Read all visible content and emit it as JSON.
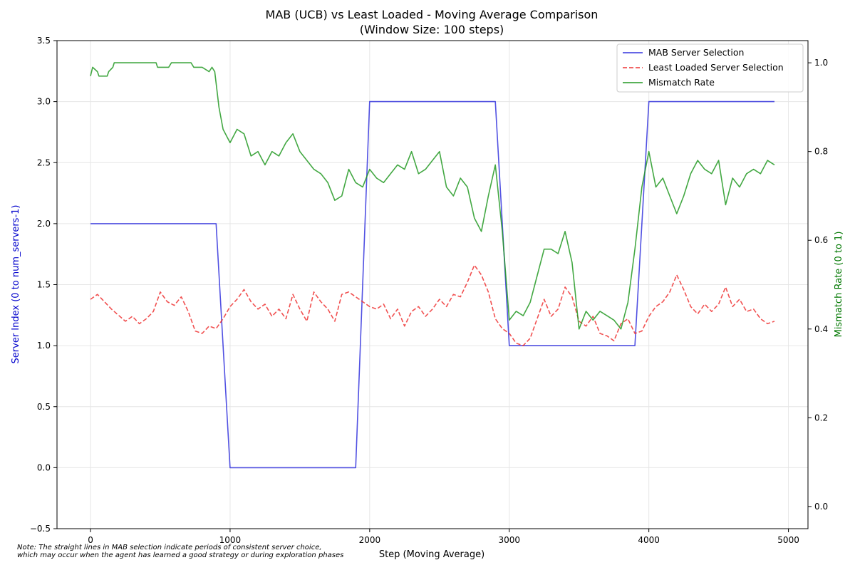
{
  "chart_data": {
    "type": "line",
    "title": "MAB (UCB) vs Least Loaded - Moving Average Comparison",
    "subtitle": "(Window Size: 100 steps)",
    "xlabel": "Step (Moving Average)",
    "ylabel": "Server Index (0 to num_servers-1)",
    "y2label": "Mismatch Rate (0 to 1)",
    "xlim": [
      -240,
      5140
    ],
    "ylim": [
      -0.5,
      3.5
    ],
    "y2lim": [
      -0.05,
      1.05
    ],
    "xticks": [
      0,
      1000,
      2000,
      3000,
      4000,
      5000
    ],
    "yticks": [
      -0.5,
      0.0,
      0.5,
      1.0,
      1.5,
      2.0,
      2.5,
      3.0,
      3.5
    ],
    "y2ticks": [
      0.0,
      0.2,
      0.4,
      0.6,
      0.8,
      1.0
    ],
    "grid": true,
    "legend_position": "top-right",
    "series": [
      {
        "name": "MAB Server Selection",
        "axis": "left",
        "color": "#3333dd",
        "style": "solid",
        "points": [
          [
            0,
            2.0
          ],
          [
            900,
            2.0
          ],
          [
            1000,
            0.0
          ],
          [
            1900,
            0.0
          ],
          [
            2000,
            3.0
          ],
          [
            2900,
            3.0
          ],
          [
            3000,
            1.0
          ],
          [
            3900,
            1.0
          ],
          [
            4000,
            3.0
          ],
          [
            4900,
            3.0
          ]
        ]
      },
      {
        "name": "Least Loaded Server Selection",
        "axis": "left",
        "color": "#ee3333",
        "style": "dashed",
        "points": [
          [
            0,
            1.38
          ],
          [
            50,
            1.42
          ],
          [
            100,
            1.36
          ],
          [
            150,
            1.3
          ],
          [
            200,
            1.25
          ],
          [
            250,
            1.2
          ],
          [
            300,
            1.24
          ],
          [
            350,
            1.18
          ],
          [
            400,
            1.22
          ],
          [
            450,
            1.28
          ],
          [
            500,
            1.44
          ],
          [
            550,
            1.36
          ],
          [
            600,
            1.33
          ],
          [
            650,
            1.4
          ],
          [
            700,
            1.28
          ],
          [
            750,
            1.12
          ],
          [
            800,
            1.1
          ],
          [
            850,
            1.16
          ],
          [
            900,
            1.14
          ],
          [
            950,
            1.22
          ],
          [
            1000,
            1.32
          ],
          [
            1050,
            1.38
          ],
          [
            1100,
            1.46
          ],
          [
            1150,
            1.36
          ],
          [
            1200,
            1.3
          ],
          [
            1250,
            1.34
          ],
          [
            1300,
            1.24
          ],
          [
            1350,
            1.3
          ],
          [
            1400,
            1.22
          ],
          [
            1450,
            1.42
          ],
          [
            1500,
            1.3
          ],
          [
            1550,
            1.2
          ],
          [
            1600,
            1.44
          ],
          [
            1650,
            1.36
          ],
          [
            1700,
            1.3
          ],
          [
            1750,
            1.2
          ],
          [
            1800,
            1.42
          ],
          [
            1850,
            1.44
          ],
          [
            1900,
            1.4
          ],
          [
            1950,
            1.36
          ],
          [
            2000,
            1.32
          ],
          [
            2050,
            1.3
          ],
          [
            2100,
            1.34
          ],
          [
            2150,
            1.22
          ],
          [
            2200,
            1.3
          ],
          [
            2250,
            1.16
          ],
          [
            2300,
            1.28
          ],
          [
            2350,
            1.32
          ],
          [
            2400,
            1.24
          ],
          [
            2450,
            1.3
          ],
          [
            2500,
            1.38
          ],
          [
            2550,
            1.32
          ],
          [
            2600,
            1.42
          ],
          [
            2650,
            1.4
          ],
          [
            2700,
            1.52
          ],
          [
            2750,
            1.66
          ],
          [
            2800,
            1.58
          ],
          [
            2850,
            1.44
          ],
          [
            2900,
            1.22
          ],
          [
            2950,
            1.14
          ],
          [
            3000,
            1.1
          ],
          [
            3050,
            1.02
          ],
          [
            3100,
            1.0
          ],
          [
            3150,
            1.06
          ],
          [
            3200,
            1.22
          ],
          [
            3250,
            1.38
          ],
          [
            3300,
            1.24
          ],
          [
            3350,
            1.3
          ],
          [
            3400,
            1.48
          ],
          [
            3450,
            1.4
          ],
          [
            3500,
            1.2
          ],
          [
            3550,
            1.16
          ],
          [
            3600,
            1.24
          ],
          [
            3650,
            1.1
          ],
          [
            3700,
            1.08
          ],
          [
            3750,
            1.04
          ],
          [
            3800,
            1.18
          ],
          [
            3850,
            1.22
          ],
          [
            3900,
            1.1
          ],
          [
            3950,
            1.12
          ],
          [
            4000,
            1.24
          ],
          [
            4050,
            1.32
          ],
          [
            4100,
            1.36
          ],
          [
            4150,
            1.44
          ],
          [
            4200,
            1.58
          ],
          [
            4250,
            1.46
          ],
          [
            4300,
            1.32
          ],
          [
            4350,
            1.26
          ],
          [
            4400,
            1.34
          ],
          [
            4450,
            1.28
          ],
          [
            4500,
            1.34
          ],
          [
            4550,
            1.48
          ],
          [
            4600,
            1.32
          ],
          [
            4650,
            1.38
          ],
          [
            4700,
            1.28
          ],
          [
            4750,
            1.3
          ],
          [
            4800,
            1.22
          ],
          [
            4850,
            1.18
          ],
          [
            4900,
            1.2
          ]
        ]
      },
      {
        "name": "Mismatch Rate",
        "axis": "right",
        "color": "#229922",
        "style": "solid",
        "points": [
          [
            0,
            0.97
          ],
          [
            15,
            0.99
          ],
          [
            50,
            0.98
          ],
          [
            60,
            0.97
          ],
          [
            120,
            0.97
          ],
          [
            130,
            0.98
          ],
          [
            160,
            0.99
          ],
          [
            170,
            1.0
          ],
          [
            300,
            1.0
          ],
          [
            470,
            1.0
          ],
          [
            480,
            0.99
          ],
          [
            560,
            0.99
          ],
          [
            580,
            1.0
          ],
          [
            720,
            1.0
          ],
          [
            740,
            0.99
          ],
          [
            800,
            0.99
          ],
          [
            850,
            0.98
          ],
          [
            870,
            0.99
          ],
          [
            890,
            0.98
          ],
          [
            920,
            0.9
          ],
          [
            950,
            0.85
          ],
          [
            1000,
            0.82
          ],
          [
            1050,
            0.85
          ],
          [
            1100,
            0.84
          ],
          [
            1150,
            0.79
          ],
          [
            1200,
            0.8
          ],
          [
            1250,
            0.77
          ],
          [
            1300,
            0.8
          ],
          [
            1350,
            0.79
          ],
          [
            1400,
            0.82
          ],
          [
            1450,
            0.84
          ],
          [
            1500,
            0.8
          ],
          [
            1550,
            0.78
          ],
          [
            1600,
            0.76
          ],
          [
            1650,
            0.75
          ],
          [
            1700,
            0.73
          ],
          [
            1750,
            0.69
          ],
          [
            1800,
            0.7
          ],
          [
            1850,
            0.76
          ],
          [
            1900,
            0.73
          ],
          [
            1950,
            0.72
          ],
          [
            2000,
            0.76
          ],
          [
            2050,
            0.74
          ],
          [
            2100,
            0.73
          ],
          [
            2150,
            0.75
          ],
          [
            2200,
            0.77
          ],
          [
            2250,
            0.76
          ],
          [
            2300,
            0.8
          ],
          [
            2350,
            0.75
          ],
          [
            2400,
            0.76
          ],
          [
            2450,
            0.78
          ],
          [
            2500,
            0.8
          ],
          [
            2550,
            0.72
          ],
          [
            2600,
            0.7
          ],
          [
            2650,
            0.74
          ],
          [
            2700,
            0.72
          ],
          [
            2750,
            0.65
          ],
          [
            2800,
            0.62
          ],
          [
            2850,
            0.7
          ],
          [
            2900,
            0.77
          ],
          [
            2950,
            0.62
          ],
          [
            3000,
            0.42
          ],
          [
            3050,
            0.44
          ],
          [
            3100,
            0.43
          ],
          [
            3150,
            0.46
          ],
          [
            3200,
            0.52
          ],
          [
            3250,
            0.58
          ],
          [
            3300,
            0.58
          ],
          [
            3350,
            0.57
          ],
          [
            3400,
            0.62
          ],
          [
            3450,
            0.55
          ],
          [
            3500,
            0.4
          ],
          [
            3550,
            0.44
          ],
          [
            3600,
            0.42
          ],
          [
            3650,
            0.44
          ],
          [
            3700,
            0.43
          ],
          [
            3750,
            0.42
          ],
          [
            3800,
            0.4
          ],
          [
            3850,
            0.46
          ],
          [
            3900,
            0.58
          ],
          [
            3950,
            0.72
          ],
          [
            4000,
            0.8
          ],
          [
            4050,
            0.72
          ],
          [
            4100,
            0.74
          ],
          [
            4150,
            0.7
          ],
          [
            4200,
            0.66
          ],
          [
            4250,
            0.7
          ],
          [
            4300,
            0.75
          ],
          [
            4350,
            0.78
          ],
          [
            4400,
            0.76
          ],
          [
            4450,
            0.75
          ],
          [
            4500,
            0.78
          ],
          [
            4550,
            0.68
          ],
          [
            4600,
            0.74
          ],
          [
            4650,
            0.72
          ],
          [
            4700,
            0.75
          ],
          [
            4750,
            0.76
          ],
          [
            4800,
            0.75
          ],
          [
            4850,
            0.78
          ],
          [
            4900,
            0.77
          ]
        ]
      }
    ],
    "note": "Note: The straight lines in MAB selection indicate periods of consistent server choice,\nwhich may occur when the agent has learned a good strategy or during exploration phases"
  }
}
